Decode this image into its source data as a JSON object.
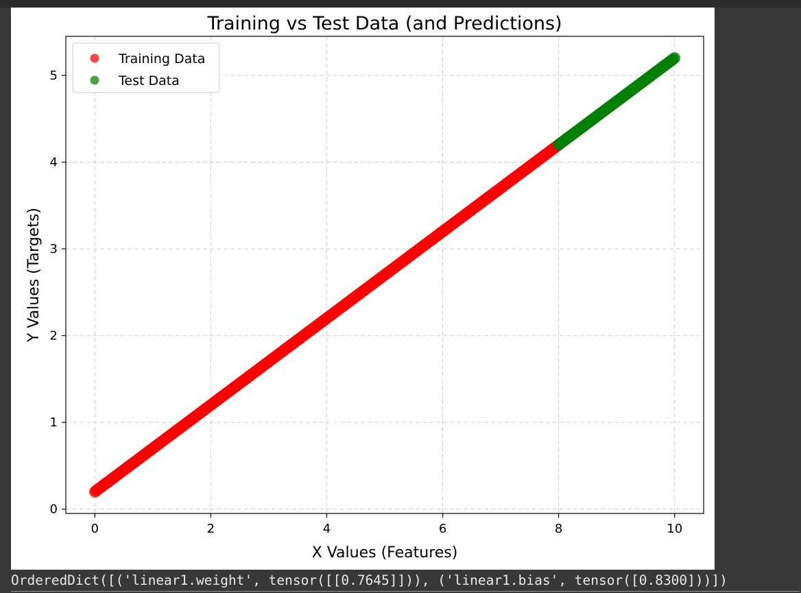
{
  "chart_data": {
    "type": "scatter",
    "title": "Training vs Test Data (and Predictions)",
    "xlabel": "X Values (Features)",
    "ylabel": "Y Values (Targets)",
    "xlim": [
      -0.5,
      10.5
    ],
    "ylim": [
      -0.05,
      5.45
    ],
    "xticks": [
      0,
      2,
      4,
      6,
      8,
      10
    ],
    "yticks": [
      0,
      1,
      2,
      3,
      4,
      5
    ],
    "grid": true,
    "legend_position": "top-left",
    "series": [
      {
        "name": "Training Data",
        "color": "#ff0000",
        "x_range": [
          0,
          8
        ],
        "y_range": [
          0.2,
          4.2
        ],
        "relation": "y = 0.5x + 0.2"
      },
      {
        "name": "Test Data",
        "color": "#008000",
        "x_range": [
          8,
          10
        ],
        "y_range": [
          4.2,
          5.2
        ],
        "relation": "y = 0.5x + 0.2"
      }
    ]
  },
  "output": {
    "text": "OrderedDict([('linear1.weight', tensor([[0.7645]])), ('linear1.bias', tensor([0.8300]))])"
  }
}
